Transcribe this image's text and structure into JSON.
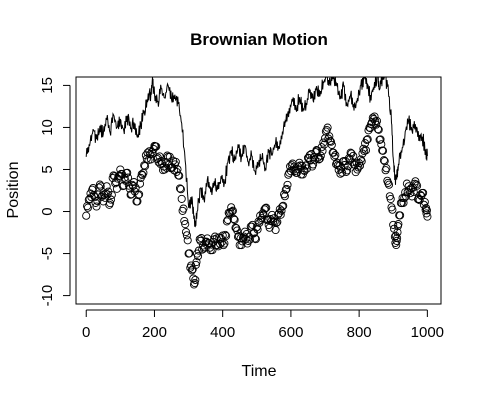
{
  "chart_data": {
    "type": "line",
    "title": "Brownian Motion",
    "xlabel": "Time",
    "ylabel": "Position",
    "xlim": [
      -30,
      1040
    ],
    "ylim": [
      -11,
      16
    ],
    "xticks": [
      0,
      200,
      400,
      600,
      800,
      1000
    ],
    "yticks": [
      -10,
      -5,
      0,
      5,
      10,
      15
    ],
    "grid": false,
    "series": [
      {
        "style": "line",
        "color": "#000000",
        "points": [
          [
            0,
            6.5
          ],
          [
            10,
            7.8
          ],
          [
            20,
            9.8
          ],
          [
            30,
            8.6
          ],
          [
            40,
            10.2
          ],
          [
            50,
            9.2
          ],
          [
            60,
            10.9
          ],
          [
            70,
            9.4
          ],
          [
            80,
            11.5
          ],
          [
            90,
            10.0
          ],
          [
            100,
            11.0
          ],
          [
            110,
            9.6
          ],
          [
            120,
            11.4
          ],
          [
            130,
            9.8
          ],
          [
            140,
            10.6
          ],
          [
            150,
            8.8
          ],
          [
            160,
            10.3
          ],
          [
            170,
            12.0
          ],
          [
            180,
            13.0
          ],
          [
            190,
            14.2
          ],
          [
            195,
            15.3
          ],
          [
            200,
            14.0
          ],
          [
            210,
            13.1
          ],
          [
            220,
            14.6
          ],
          [
            230,
            13.5
          ],
          [
            240,
            15.0
          ],
          [
            250,
            13.3
          ],
          [
            260,
            13.9
          ],
          [
            270,
            12.8
          ],
          [
            280,
            10.5
          ],
          [
            290,
            6.0
          ],
          [
            300,
            0.5
          ],
          [
            310,
            1.8
          ],
          [
            318,
            -1.8
          ],
          [
            325,
            0.0
          ],
          [
            335,
            2.8
          ],
          [
            345,
            1.5
          ],
          [
            355,
            3.8
          ],
          [
            365,
            2.3
          ],
          [
            375,
            3.6
          ],
          [
            385,
            2.6
          ],
          [
            395,
            4.2
          ],
          [
            405,
            3.4
          ],
          [
            415,
            5.8
          ],
          [
            425,
            7.3
          ],
          [
            435,
            6.0
          ],
          [
            445,
            8.0
          ],
          [
            455,
            6.4
          ],
          [
            465,
            7.8
          ],
          [
            475,
            5.9
          ],
          [
            485,
            6.6
          ],
          [
            495,
            4.8
          ],
          [
            505,
            5.7
          ],
          [
            515,
            6.3
          ],
          [
            525,
            5.2
          ],
          [
            535,
            7.0
          ],
          [
            545,
            6.7
          ],
          [
            555,
            8.2
          ],
          [
            565,
            7.5
          ],
          [
            575,
            9.5
          ],
          [
            585,
            10.6
          ],
          [
            595,
            12.3
          ],
          [
            605,
            13.2
          ],
          [
            615,
            12.1
          ],
          [
            625,
            13.6
          ],
          [
            635,
            11.9
          ],
          [
            645,
            12.9
          ],
          [
            655,
            14.1
          ],
          [
            665,
            13.2
          ],
          [
            675,
            14.9
          ],
          [
            685,
            13.7
          ],
          [
            695,
            15.4
          ],
          [
            705,
            16.0
          ],
          [
            715,
            15.2
          ],
          [
            725,
            16.0
          ],
          [
            735,
            15.0
          ],
          [
            745,
            13.6
          ],
          [
            755,
            14.8
          ],
          [
            765,
            12.6
          ],
          [
            775,
            13.9
          ],
          [
            785,
            12.0
          ],
          [
            795,
            13.5
          ],
          [
            805,
            15.0
          ],
          [
            815,
            16.0
          ],
          [
            825,
            15.1
          ],
          [
            835,
            13.2
          ],
          [
            845,
            15.4
          ],
          [
            855,
            16.0
          ],
          [
            860,
            14.5
          ],
          [
            868,
            16.0
          ],
          [
            875,
            16.0
          ],
          [
            885,
            15.0
          ],
          [
            895,
            10.5
          ],
          [
            900,
            6.4
          ],
          [
            905,
            4.2
          ],
          [
            910,
            3.8
          ],
          [
            915,
            5.6
          ],
          [
            925,
            7.1
          ],
          [
            935,
            9.5
          ],
          [
            945,
            10.8
          ],
          [
            955,
            9.6
          ],
          [
            965,
            10.4
          ],
          [
            975,
            8.4
          ],
          [
            985,
            8.9
          ],
          [
            995,
            7.3
          ],
          [
            1000,
            6.6
          ]
        ]
      },
      {
        "style": "points",
        "marker": "open-circle",
        "color": "#000000",
        "points": [
          [
            0,
            -0.5
          ],
          [
            10,
            1.5
          ],
          [
            20,
            2.8
          ],
          [
            30,
            0.6
          ],
          [
            40,
            3.2
          ],
          [
            50,
            1.2
          ],
          [
            60,
            3.0
          ],
          [
            70,
            1.0
          ],
          [
            80,
            4.3
          ],
          [
            90,
            2.7
          ],
          [
            100,
            5.0
          ],
          [
            110,
            3.1
          ],
          [
            120,
            4.6
          ],
          [
            130,
            2.0
          ],
          [
            140,
            3.5
          ],
          [
            150,
            1.2
          ],
          [
            160,
            4.0
          ],
          [
            170,
            5.5
          ],
          [
            180,
            7.0
          ],
          [
            190,
            6.2
          ],
          [
            200,
            7.8
          ],
          [
            210,
            6.4
          ],
          [
            220,
            6.0
          ],
          [
            230,
            5.0
          ],
          [
            240,
            6.5
          ],
          [
            250,
            5.2
          ],
          [
            260,
            5.6
          ],
          [
            270,
            4.3
          ],
          [
            280,
            1.5
          ],
          [
            290,
            -1.5
          ],
          [
            300,
            -5.0
          ],
          [
            310,
            -7.0
          ],
          [
            318,
            -8.5
          ],
          [
            325,
            -5.0
          ],
          [
            335,
            -3.5
          ],
          [
            345,
            -4.4
          ],
          [
            355,
            -3.2
          ],
          [
            365,
            -4.6
          ],
          [
            375,
            -3.3
          ],
          [
            385,
            -4.0
          ],
          [
            395,
            -3.2
          ],
          [
            405,
            -3.8
          ],
          [
            415,
            -1.0
          ],
          [
            425,
            0.5
          ],
          [
            435,
            -1.0
          ],
          [
            445,
            -3.0
          ],
          [
            455,
            -4.0
          ],
          [
            465,
            -2.4
          ],
          [
            475,
            -3.5
          ],
          [
            485,
            -1.8
          ],
          [
            495,
            -3.2
          ],
          [
            505,
            -1.2
          ],
          [
            515,
            -0.8
          ],
          [
            525,
            0.4
          ],
          [
            535,
            -1.6
          ],
          [
            545,
            -0.4
          ],
          [
            555,
            -2.2
          ],
          [
            565,
            -0.2
          ],
          [
            575,
            0.6
          ],
          [
            585,
            2.6
          ],
          [
            595,
            4.6
          ],
          [
            605,
            5.7
          ],
          [
            615,
            4.6
          ],
          [
            625,
            5.8
          ],
          [
            635,
            4.4
          ],
          [
            645,
            5.5
          ],
          [
            655,
            6.7
          ],
          [
            665,
            5.6
          ],
          [
            675,
            7.3
          ],
          [
            685,
            6.3
          ],
          [
            695,
            8.2
          ],
          [
            705,
            9.7
          ],
          [
            715,
            8.4
          ],
          [
            725,
            7.0
          ],
          [
            735,
            5.8
          ],
          [
            745,
            4.5
          ],
          [
            755,
            6.0
          ],
          [
            765,
            4.9
          ],
          [
            775,
            7.0
          ],
          [
            785,
            5.6
          ],
          [
            795,
            5.0
          ],
          [
            805,
            6.2
          ],
          [
            815,
            7.2
          ],
          [
            825,
            8.6
          ],
          [
            835,
            10.4
          ],
          [
            845,
            11.3
          ],
          [
            855,
            9.8
          ],
          [
            865,
            8.0
          ],
          [
            875,
            6.0
          ],
          [
            885,
            3.4
          ],
          [
            895,
            0.5
          ],
          [
            905,
            -3.0
          ],
          [
            910,
            -3.5
          ],
          [
            915,
            -1.5
          ],
          [
            925,
            1.0
          ],
          [
            935,
            2.3
          ],
          [
            945,
            3.0
          ],
          [
            955,
            1.8
          ],
          [
            965,
            3.6
          ],
          [
            975,
            1.5
          ],
          [
            985,
            2.2
          ],
          [
            995,
            0.2
          ],
          [
            1000,
            -0.6
          ]
        ]
      }
    ]
  }
}
